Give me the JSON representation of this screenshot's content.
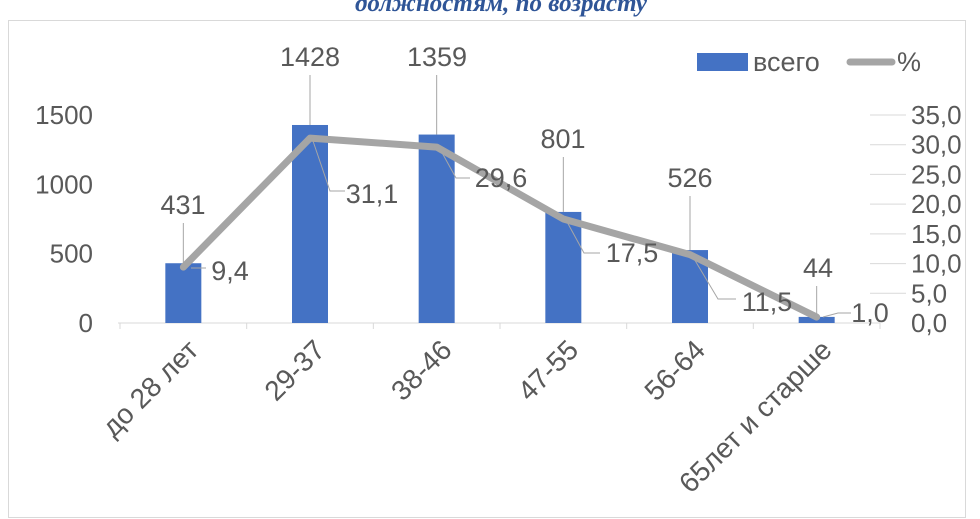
{
  "caption": "должностям, по возрасту",
  "chart_data": {
    "type": "bar",
    "categories": [
      "до 28 лет",
      "29-37",
      "38-46",
      "47-55",
      "56-64",
      "65лет и старше"
    ],
    "series": [
      {
        "name": "всего",
        "type": "bar",
        "axis": "left",
        "color": "#4472C4",
        "values": [
          431,
          1428,
          1359,
          801,
          526,
          44
        ]
      },
      {
        "name": "%",
        "type": "line",
        "axis": "right",
        "color": "#A5A5A5",
        "values": [
          9.4,
          31.1,
          29.6,
          17.5,
          11.5,
          1.0
        ],
        "labels": [
          "9,4",
          "31,1",
          "29,6",
          "17,5",
          "11,5",
          "1,0"
        ]
      }
    ],
    "y_left": {
      "ylim": [
        0,
        1500
      ],
      "ticks": [
        "0",
        "500",
        "1000",
        "1500"
      ]
    },
    "y_right": {
      "ylim": [
        0,
        35
      ],
      "ticks": [
        "0,0",
        "5,0",
        "10,0",
        "15,0",
        "20,0",
        "25,0",
        "30,0",
        "35,0"
      ]
    },
    "legend": "top-right",
    "grid": false
  }
}
